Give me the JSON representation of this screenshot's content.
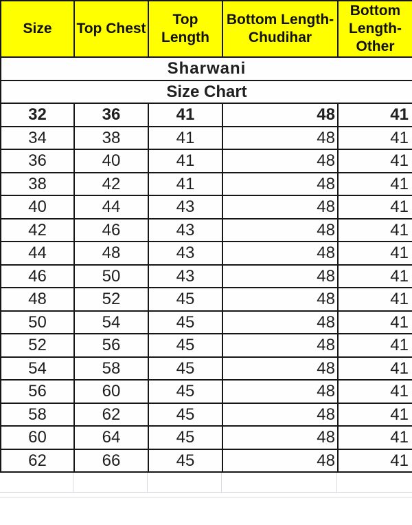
{
  "colors": {
    "accent_yellow": "#ffff00",
    "title_red": "#c2191d",
    "subtitle_red": "#e31b17",
    "grid_black": "#161616",
    "ghost_grid": "#d6dae1"
  },
  "chart_data": {
    "type": "table",
    "title": "Sharwani",
    "subtitle": "Size Chart",
    "columns": [
      "Size",
      "Top Chest",
      "Top Length",
      "Bottom Length-Chudihar",
      "Bottom Length-Other"
    ],
    "rows": [
      [
        32,
        36,
        41,
        48,
        41
      ],
      [
        34,
        38,
        41,
        48,
        41
      ],
      [
        36,
        40,
        41,
        48,
        41
      ],
      [
        38,
        42,
        41,
        48,
        41
      ],
      [
        40,
        44,
        43,
        48,
        41
      ],
      [
        42,
        46,
        43,
        48,
        41
      ],
      [
        44,
        48,
        43,
        48,
        41
      ],
      [
        46,
        50,
        43,
        48,
        41
      ],
      [
        48,
        52,
        45,
        48,
        41
      ],
      [
        50,
        54,
        45,
        48,
        41
      ],
      [
        52,
        56,
        45,
        48,
        41
      ],
      [
        54,
        58,
        45,
        48,
        41
      ],
      [
        56,
        60,
        45,
        48,
        41
      ],
      [
        58,
        62,
        45,
        48,
        41
      ],
      [
        60,
        64,
        45,
        48,
        41
      ],
      [
        62,
        66,
        45,
        48,
        41
      ]
    ],
    "layout": {
      "first_data_row_bold": true,
      "right_aligned_columns": [
        3,
        4
      ],
      "grid": true
    }
  }
}
